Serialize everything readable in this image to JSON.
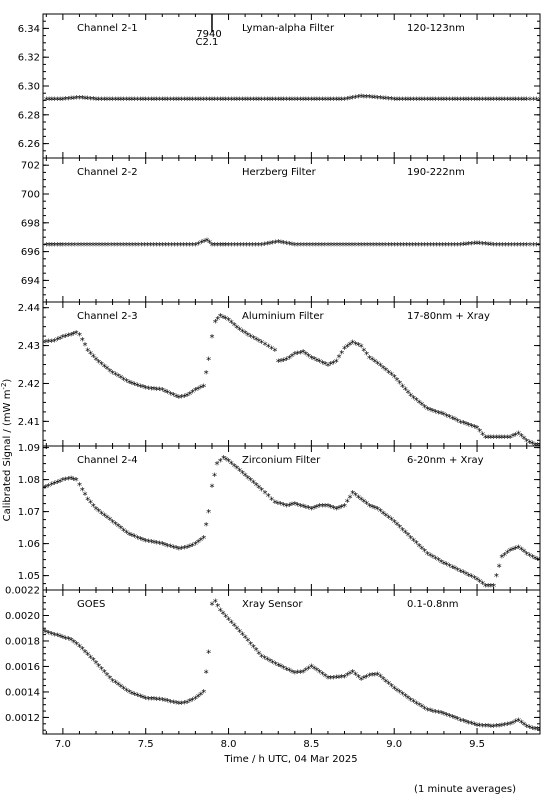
{
  "y_axis_label": "Calibrated Signal / (mW m",
  "y_axis_label_sup": "-2",
  "y_axis_label_close": ")",
  "x_axis_label": "Time / h UTC, 04 Mar 2025",
  "footnote": "(1 minute averages)",
  "marker": {
    "x": 7.9,
    "label_top": "7940",
    "label_bottom": "C2.1"
  },
  "chart_data": {
    "type": "scatter",
    "x_range": [
      6.88,
      9.88
    ],
    "x_ticks": [
      7.0,
      7.5,
      8.0,
      8.5,
      9.0,
      9.5
    ],
    "x_tick_labels": [
      "7.0",
      "7.5",
      "8.0",
      "8.5",
      "9.0",
      "9.5"
    ],
    "panels": [
      {
        "name": "Channel 2-1",
        "filter": "Lyman-alpha Filter",
        "band": "120-123nm",
        "color": "#e01010",
        "y_range": [
          6.25,
          6.35
        ],
        "y_ticks": [
          6.26,
          6.28,
          6.3,
          6.32,
          6.34
        ],
        "y_tick_labels": [
          "6.26",
          "6.28",
          "6.30",
          "6.32",
          "6.34"
        ],
        "points": [
          [
            6.9,
            6.29
          ],
          [
            7.0,
            6.29
          ],
          [
            7.1,
            6.291
          ],
          [
            7.2,
            6.29
          ],
          [
            7.3,
            6.29
          ],
          [
            7.4,
            6.29
          ],
          [
            7.5,
            6.29
          ],
          [
            7.6,
            6.29
          ],
          [
            7.7,
            6.29
          ],
          [
            7.8,
            6.29
          ],
          [
            7.9,
            6.29
          ],
          [
            8.0,
            6.29
          ],
          [
            8.1,
            6.29
          ],
          [
            8.2,
            6.29
          ],
          [
            8.3,
            6.29
          ],
          [
            8.4,
            6.29
          ],
          [
            8.5,
            6.29
          ],
          [
            8.6,
            6.29
          ],
          [
            8.7,
            6.29
          ],
          [
            8.8,
            6.292
          ],
          [
            8.9,
            6.291
          ],
          [
            9.0,
            6.29
          ],
          [
            9.1,
            6.29
          ],
          [
            9.2,
            6.29
          ],
          [
            9.3,
            6.29
          ],
          [
            9.4,
            6.29
          ],
          [
            9.5,
            6.29
          ],
          [
            9.6,
            6.29
          ],
          [
            9.7,
            6.29
          ],
          [
            9.8,
            6.29
          ],
          [
            9.88,
            6.29
          ]
        ]
      },
      {
        "name": "Channel 2-2",
        "filter": "Herzberg Filter",
        "band": "190-222nm",
        "color": "#20e020",
        "y_range": [
          692.5,
          702.5
        ],
        "y_ticks": [
          694,
          696,
          698,
          700,
          702
        ],
        "y_tick_labels": [
          "694",
          "696",
          "698",
          "700",
          "702"
        ],
        "points": [
          [
            6.9,
            696.4
          ],
          [
            7.0,
            696.4
          ],
          [
            7.2,
            696.4
          ],
          [
            7.4,
            696.4
          ],
          [
            7.6,
            696.4
          ],
          [
            7.8,
            696.4
          ],
          [
            7.87,
            696.7
          ],
          [
            7.9,
            696.4
          ],
          [
            8.0,
            696.4
          ],
          [
            8.2,
            696.4
          ],
          [
            8.3,
            696.6
          ],
          [
            8.4,
            696.4
          ],
          [
            8.6,
            696.4
          ],
          [
            8.8,
            696.4
          ],
          [
            9.0,
            696.4
          ],
          [
            9.2,
            696.4
          ],
          [
            9.4,
            696.4
          ],
          [
            9.5,
            696.5
          ],
          [
            9.6,
            696.4
          ],
          [
            9.8,
            696.4
          ],
          [
            9.88,
            696.4
          ]
        ]
      },
      {
        "name": "Channel 2-3",
        "filter": "Aluminium Filter",
        "band": "17-80nm + Xray",
        "color": "#1010d0",
        "y_range": [
          2.4035,
          2.4415
        ],
        "y_ticks": [
          2.41,
          2.42,
          2.43,
          2.44
        ],
        "y_tick_labels": [
          "2.41",
          "2.42",
          "2.43",
          "2.44"
        ],
        "points": [
          [
            6.88,
            2.4305
          ],
          [
            6.95,
            2.431
          ],
          [
            7.0,
            2.432
          ],
          [
            7.05,
            2.4325
          ],
          [
            7.08,
            2.433
          ],
          [
            7.1,
            2.4325
          ],
          [
            7.15,
            2.4285
          ],
          [
            7.2,
            2.426
          ],
          [
            7.3,
            2.4225
          ],
          [
            7.4,
            2.42
          ],
          [
            7.5,
            2.4185
          ],
          [
            7.6,
            2.418
          ],
          [
            7.7,
            2.416
          ],
          [
            7.75,
            2.4165
          ],
          [
            7.8,
            2.418
          ],
          [
            7.85,
            2.419
          ],
          [
            7.88,
            2.426
          ],
          [
            7.9,
            2.432
          ],
          [
            7.92,
            2.436
          ],
          [
            7.95,
            2.4375
          ],
          [
            8.0,
            2.4365
          ],
          [
            8.05,
            2.4345
          ],
          [
            8.1,
            2.433
          ],
          [
            8.2,
            2.4305
          ],
          [
            8.28,
            2.4285
          ],
          [
            8.3,
            2.4255
          ],
          [
            8.35,
            2.426
          ],
          [
            8.4,
            2.4275
          ],
          [
            8.45,
            2.428
          ],
          [
            8.5,
            2.4265
          ],
          [
            8.55,
            2.4255
          ],
          [
            8.6,
            2.4245
          ],
          [
            8.65,
            2.4255
          ],
          [
            8.7,
            2.429
          ],
          [
            8.75,
            2.4305
          ],
          [
            8.8,
            2.4295
          ],
          [
            8.85,
            2.4265
          ],
          [
            8.9,
            2.425
          ],
          [
            9.0,
            2.4215
          ],
          [
            9.1,
            2.4165
          ],
          [
            9.2,
            2.413
          ],
          [
            9.3,
            2.4115
          ],
          [
            9.4,
            2.4095
          ],
          [
            9.5,
            2.408
          ],
          [
            9.55,
            2.4055
          ],
          [
            9.6,
            2.4055
          ],
          [
            9.7,
            2.4055
          ],
          [
            9.75,
            2.4065
          ],
          [
            9.8,
            2.4045
          ],
          [
            9.85,
            2.4035
          ],
          [
            9.88,
            2.4035
          ]
        ]
      },
      {
        "name": "Channel 2-4",
        "filter": "Zirconium Filter",
        "band": "6-20nm + Xray",
        "color": "#808080",
        "y_range": [
          1.0455,
          1.0905
        ],
        "y_ticks": [
          1.05,
          1.06,
          1.07,
          1.08,
          1.09
        ],
        "y_tick_labels": [
          "1.05",
          "1.06",
          "1.07",
          "1.08",
          "1.09"
        ],
        "points": [
          [
            6.88,
            1.077
          ],
          [
            6.95,
            1.0785
          ],
          [
            7.0,
            1.0795
          ],
          [
            7.05,
            1.08
          ],
          [
            7.08,
            1.0795
          ],
          [
            7.1,
            1.078
          ],
          [
            7.15,
            1.0735
          ],
          [
            7.2,
            1.0705
          ],
          [
            7.3,
            1.0665
          ],
          [
            7.4,
            1.0625
          ],
          [
            7.5,
            1.0605
          ],
          [
            7.6,
            1.0595
          ],
          [
            7.7,
            1.058
          ],
          [
            7.75,
            1.0585
          ],
          [
            7.8,
            1.0595
          ],
          [
            7.85,
            1.0615
          ],
          [
            7.88,
            1.0695
          ],
          [
            7.9,
            1.0775
          ],
          [
            7.93,
            1.0845
          ],
          [
            7.97,
            1.0865
          ],
          [
            8.0,
            1.0855
          ],
          [
            8.1,
            1.081
          ],
          [
            8.2,
            1.0765
          ],
          [
            8.28,
            1.0725
          ],
          [
            8.35,
            1.0715
          ],
          [
            8.4,
            1.072
          ],
          [
            8.5,
            1.0705
          ],
          [
            8.55,
            1.0715
          ],
          [
            8.6,
            1.0715
          ],
          [
            8.65,
            1.0705
          ],
          [
            8.7,
            1.0715
          ],
          [
            8.75,
            1.0755
          ],
          [
            8.8,
            1.0735
          ],
          [
            8.85,
            1.0715
          ],
          [
            8.9,
            1.0705
          ],
          [
            9.0,
            1.0665
          ],
          [
            9.1,
            1.0615
          ],
          [
            9.2,
            1.0565
          ],
          [
            9.3,
            1.0535
          ],
          [
            9.4,
            1.051
          ],
          [
            9.5,
            1.0485
          ],
          [
            9.55,
            1.0465
          ],
          [
            9.6,
            1.0465
          ],
          [
            9.65,
            1.0555
          ],
          [
            9.7,
            1.0575
          ],
          [
            9.75,
            1.0585
          ],
          [
            9.8,
            1.0565
          ],
          [
            9.85,
            1.055
          ],
          [
            9.88,
            1.0545
          ]
        ]
      },
      {
        "name": "GOES",
        "filter": "Xray Sensor",
        "band": "0.1-0.8nm",
        "color": "#e01010",
        "y_range": [
          0.00107,
          0.0022
        ],
        "y_ticks": [
          0.0012,
          0.0014,
          0.0016,
          0.0018,
          0.002,
          0.0022
        ],
        "y_tick_labels": [
          "0.0012",
          "0.0014",
          "0.0016",
          "0.0018",
          "0.0020",
          "0.0022"
        ],
        "points": [
          [
            6.88,
            0.00187
          ],
          [
            6.95,
            0.00184
          ],
          [
            7.0,
            0.00182
          ],
          [
            7.05,
            0.0018
          ],
          [
            7.1,
            0.00175
          ],
          [
            7.2,
            0.00162
          ],
          [
            7.3,
            0.00148
          ],
          [
            7.4,
            0.00139
          ],
          [
            7.5,
            0.00134
          ],
          [
            7.6,
            0.00133
          ],
          [
            7.7,
            0.0013
          ],
          [
            7.75,
            0.00131
          ],
          [
            7.8,
            0.00134
          ],
          [
            7.85,
            0.00139
          ],
          [
            7.88,
            0.0017
          ],
          [
            7.9,
            0.00208
          ],
          [
            7.92,
            0.0021
          ],
          [
            7.95,
            0.00203
          ],
          [
            8.0,
            0.00196
          ],
          [
            8.1,
            0.00182
          ],
          [
            8.2,
            0.00167
          ],
          [
            8.3,
            0.0016
          ],
          [
            8.4,
            0.00154
          ],
          [
            8.45,
            0.00155
          ],
          [
            8.5,
            0.00159
          ],
          [
            8.55,
            0.00155
          ],
          [
            8.6,
            0.0015
          ],
          [
            8.7,
            0.00151
          ],
          [
            8.75,
            0.00155
          ],
          [
            8.8,
            0.00149
          ],
          [
            8.85,
            0.00152
          ],
          [
            8.9,
            0.00153
          ],
          [
            9.0,
            0.00142
          ],
          [
            9.1,
            0.00133
          ],
          [
            9.2,
            0.00125
          ],
          [
            9.3,
            0.00122
          ],
          [
            9.4,
            0.00117
          ],
          [
            9.5,
            0.00113
          ],
          [
            9.6,
            0.00112
          ],
          [
            9.7,
            0.00114
          ],
          [
            9.75,
            0.00117
          ],
          [
            9.8,
            0.00112
          ],
          [
            9.85,
            0.0011
          ],
          [
            9.88,
            0.0011
          ]
        ]
      }
    ]
  }
}
